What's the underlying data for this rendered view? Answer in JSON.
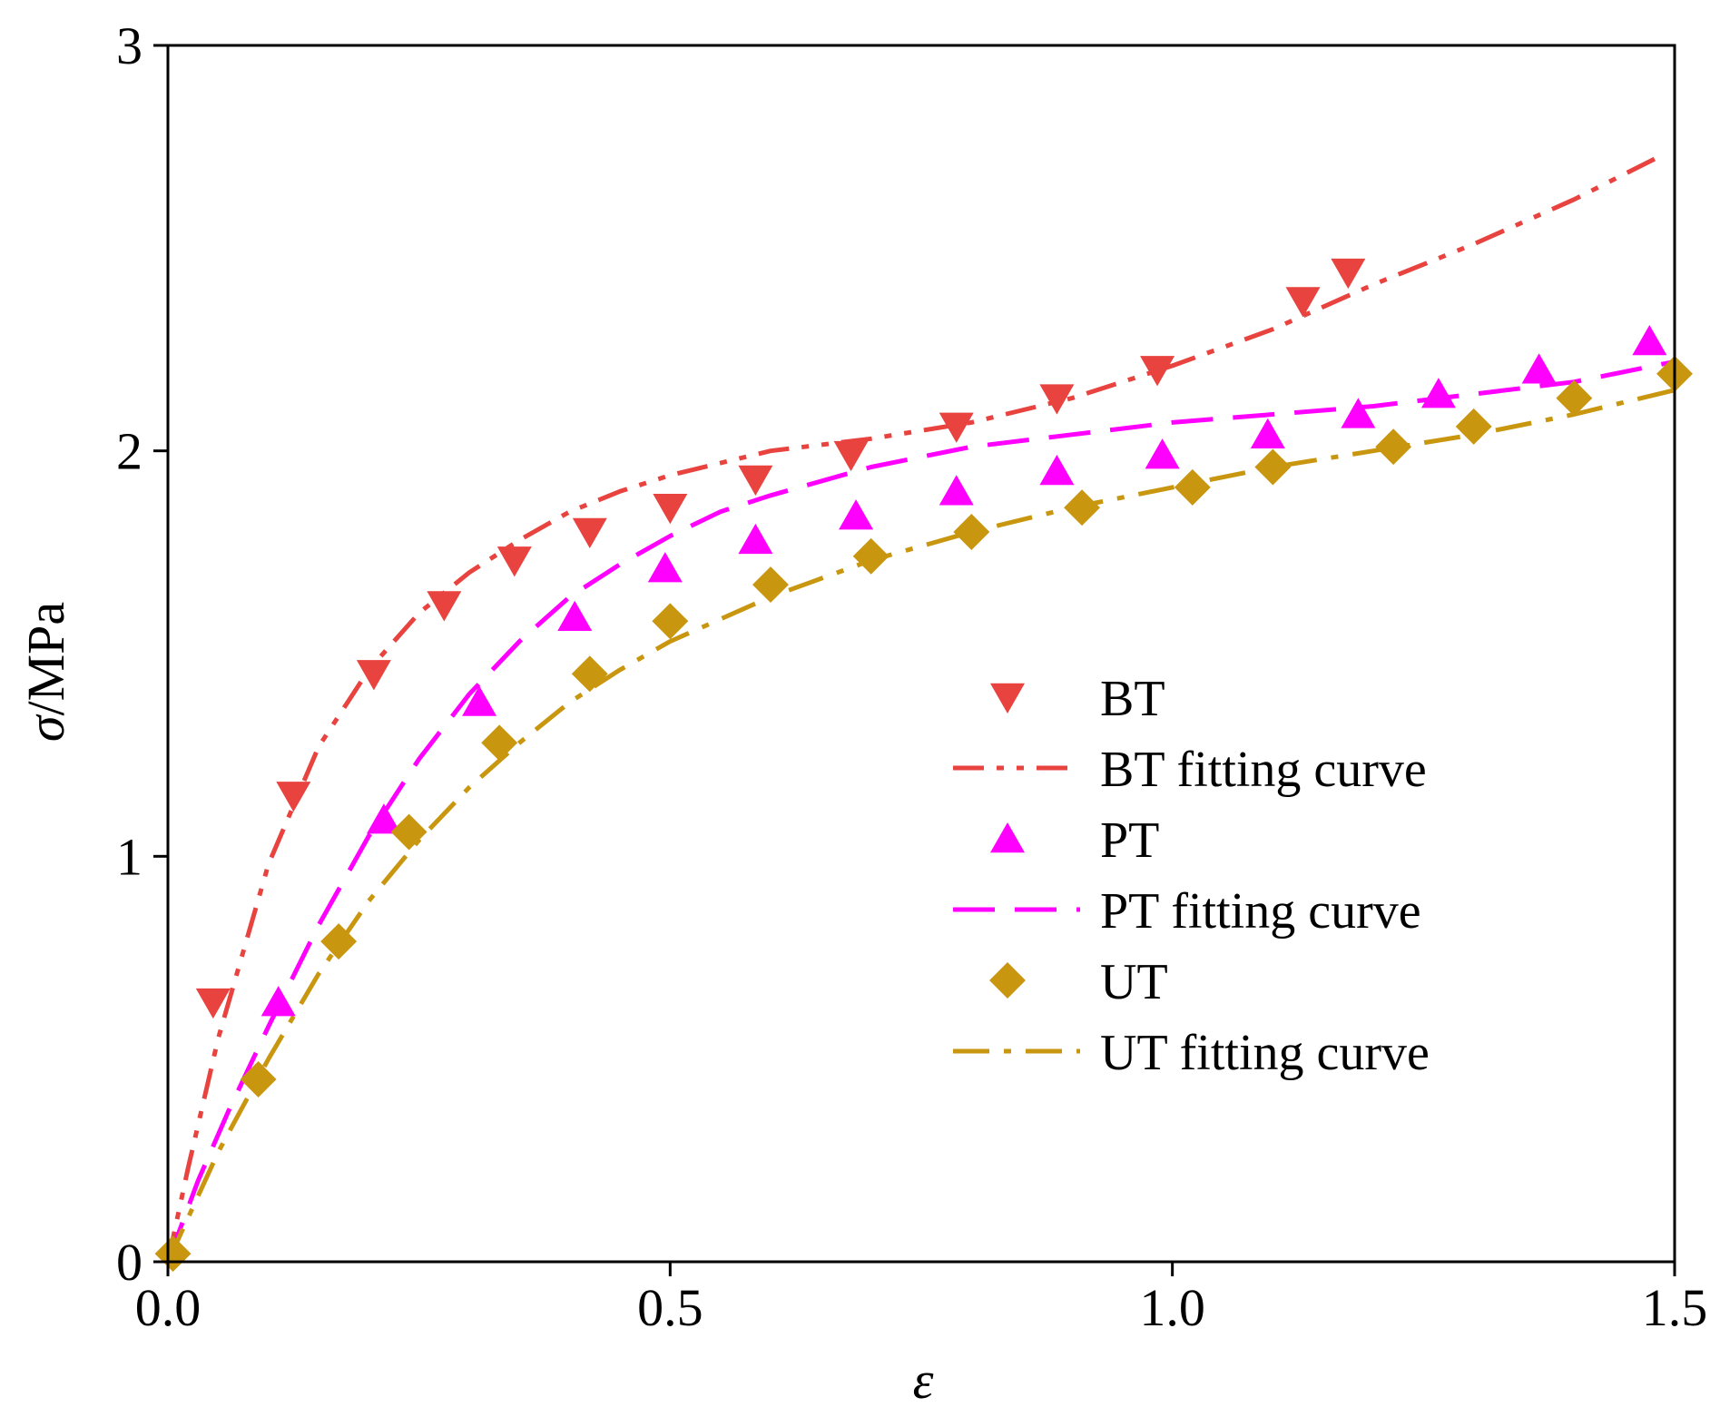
{
  "chart_data": {
    "type": "scatter",
    "xlabel": "ε",
    "ylabel_symbol": "σ",
    "ylabel_unit": "/MPa",
    "xlim": [
      0,
      1.5
    ],
    "ylim": [
      0,
      3
    ],
    "xticks": [
      0,
      0.5,
      1.0,
      1.5
    ],
    "xtick_labels": [
      "0.0",
      "0.5",
      "1.0",
      "1.5"
    ],
    "yticks": [
      0,
      1,
      2,
      3
    ],
    "ytick_labels": [
      "0",
      "1",
      "2",
      "3"
    ],
    "grid": false,
    "legend_position": "right-middle",
    "series": [
      {
        "name": "BT",
        "kind": "markers",
        "marker": "triangle-down",
        "color": "#e8433f",
        "x": [
          0.045,
          0.125,
          0.205,
          0.275,
          0.345,
          0.42,
          0.5,
          0.585,
          0.68,
          0.785,
          0.885,
          0.985,
          1.13,
          1.175
        ],
        "y": [
          0.64,
          1.15,
          1.45,
          1.62,
          1.73,
          1.8,
          1.86,
          1.93,
          1.99,
          2.06,
          2.13,
          2.2,
          2.37,
          2.44
        ]
      },
      {
        "name": "BT fitting curve",
        "kind": "line",
        "dash": "dash-dot-dot",
        "color": "#e8433f",
        "x": [
          0,
          0.02,
          0.05,
          0.1,
          0.15,
          0.2,
          0.25,
          0.3,
          0.35,
          0.4,
          0.45,
          0.5,
          0.6,
          0.7,
          0.8,
          0.9,
          1.0,
          1.1,
          1.2,
          1.3,
          1.4,
          1.48
        ],
        "y": [
          0,
          0.23,
          0.55,
          0.98,
          1.27,
          1.46,
          1.6,
          1.7,
          1.78,
          1.85,
          1.9,
          1.94,
          2.0,
          2.03,
          2.07,
          2.13,
          2.21,
          2.3,
          2.41,
          2.51,
          2.62,
          2.72
        ]
      },
      {
        "name": "PT",
        "kind": "markers",
        "marker": "triangle-up",
        "color": "#ff00ff",
        "x": [
          0.11,
          0.215,
          0.31,
          0.405,
          0.495,
          0.585,
          0.685,
          0.785,
          0.885,
          0.99,
          1.095,
          1.185,
          1.265,
          1.365,
          1.475
        ],
        "y": [
          0.64,
          1.09,
          1.38,
          1.59,
          1.71,
          1.78,
          1.84,
          1.9,
          1.95,
          1.99,
          2.04,
          2.09,
          2.14,
          2.2,
          2.27
        ]
      },
      {
        "name": "PT fitting curve",
        "kind": "line",
        "dash": "dash",
        "color": "#ff00ff",
        "x": [
          0,
          0.03,
          0.06,
          0.1,
          0.15,
          0.2,
          0.25,
          0.3,
          0.35,
          0.4,
          0.45,
          0.5,
          0.55,
          0.6,
          0.7,
          0.8,
          0.9,
          1.0,
          1.1,
          1.2,
          1.3,
          1.4,
          1.5
        ],
        "y": [
          0,
          0.2,
          0.37,
          0.58,
          0.83,
          1.05,
          1.24,
          1.4,
          1.53,
          1.64,
          1.72,
          1.79,
          1.85,
          1.89,
          1.96,
          2.01,
          2.04,
          2.07,
          2.09,
          2.11,
          2.14,
          2.17,
          2.22
        ]
      },
      {
        "name": "UT",
        "kind": "markers",
        "marker": "diamond",
        "color": "#c9960f",
        "x": [
          0.005,
          0.09,
          0.17,
          0.24,
          0.33,
          0.42,
          0.5,
          0.6,
          0.7,
          0.8,
          0.91,
          1.02,
          1.1,
          1.22,
          1.3,
          1.4,
          1.5
        ],
        "y": [
          0.02,
          0.45,
          0.79,
          1.06,
          1.28,
          1.45,
          1.58,
          1.67,
          1.74,
          1.8,
          1.86,
          1.91,
          1.96,
          2.01,
          2.06,
          2.13,
          2.19
        ]
      },
      {
        "name": "UT fitting curve",
        "kind": "line",
        "dash": "dash-dot",
        "color": "#c9960f",
        "x": [
          0,
          0.05,
          0.1,
          0.15,
          0.2,
          0.25,
          0.3,
          0.35,
          0.4,
          0.45,
          0.5,
          0.6,
          0.7,
          0.8,
          0.9,
          1.0,
          1.1,
          1.2,
          1.3,
          1.4,
          1.5
        ],
        "y": [
          0,
          0.27,
          0.5,
          0.71,
          0.89,
          1.04,
          1.17,
          1.28,
          1.38,
          1.46,
          1.53,
          1.64,
          1.73,
          1.8,
          1.86,
          1.91,
          1.96,
          2.0,
          2.04,
          2.09,
          2.15
        ]
      }
    ]
  }
}
